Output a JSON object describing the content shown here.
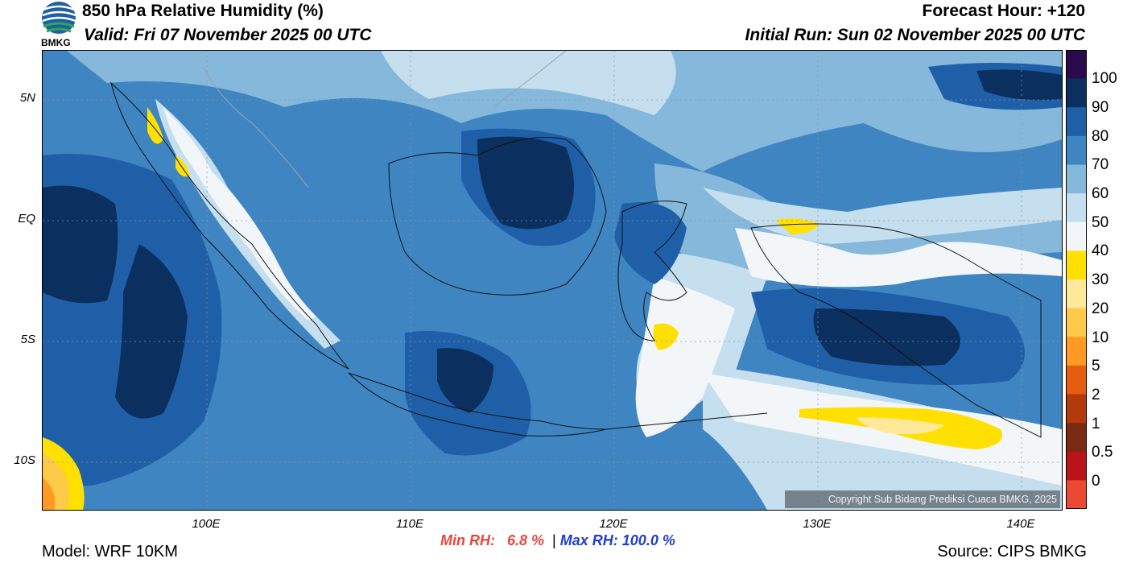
{
  "header": {
    "title": "850 hPa Relative Humidity (%)",
    "valid": "Valid: Fri 07 November 2025 00 UTC",
    "forecast_hour": "Forecast Hour: +120",
    "initial_run": "Initial Run: Sun 02 November 2025 00 UTC"
  },
  "logo": {
    "text": "BMKG",
    "icon": "bmkg-logo-icon"
  },
  "map": {
    "region": "Indonesia",
    "lat_labels": [
      "5N",
      "EQ",
      "5S",
      "10S"
    ],
    "lon_labels": [
      "100E",
      "110E",
      "120E",
      "130E",
      "140E"
    ],
    "copyright": "Copyright Sub Bidang Prediksi Cuaca BMKG, 2025"
  },
  "colorbar": {
    "labels": [
      "100",
      "90",
      "80",
      "70",
      "60",
      "50",
      "40",
      "30",
      "20",
      "10",
      "5",
      "2",
      "1",
      "0.5",
      "0"
    ],
    "colors": [
      "#2a0a4a",
      "#0b2f5e",
      "#1f5fa8",
      "#3f85c2",
      "#86b8db",
      "#c5dfef",
      "#f3f6f8",
      "#ffe000",
      "#ffe89a",
      "#ffc94a",
      "#ff9a22",
      "#e65c10",
      "#b23a0c",
      "#7a2a12",
      "#b8141a",
      "#ea4a34"
    ]
  },
  "stats": {
    "min_label": "Min RH:",
    "min_value": "6.8 %",
    "separator": "|",
    "max_label": "Max RH:",
    "max_value": "100.0 %"
  },
  "footer": {
    "model": "Model: WRF 10KM",
    "source": "Source: CIPS BMKG"
  }
}
